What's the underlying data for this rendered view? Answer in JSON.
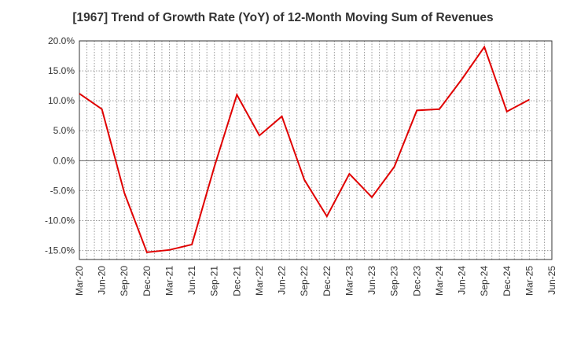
{
  "chart_data": {
    "type": "line",
    "title": "[1967]  Trend of Growth Rate (YoY) of 12-Month Moving Sum of Revenues",
    "xlabel": "",
    "ylabel": "",
    "ylim": [
      -16.5,
      20.0
    ],
    "y_ticks": [
      20.0,
      15.0,
      10.0,
      5.0,
      0.0,
      -5.0,
      -10.0,
      -15.0
    ],
    "y_tick_labels": [
      "20.0%",
      "15.0%",
      "10.0%",
      "5.0%",
      "0.0%",
      "-5.0%",
      "-10.0%",
      "-15.0%"
    ],
    "x_tick_labels": [
      "Mar-20",
      "Jun-20",
      "Sep-20",
      "Dec-20",
      "Mar-21",
      "Jun-21",
      "Sep-21",
      "Dec-21",
      "Mar-22",
      "Jun-22",
      "Sep-22",
      "Dec-22",
      "Mar-23",
      "Jun-23",
      "Sep-23",
      "Dec-23",
      "Mar-24",
      "Jun-24",
      "Sep-24",
      "Dec-24",
      "Mar-25",
      "Jun-25"
    ],
    "grid": true,
    "series": [
      {
        "color": "#e00000",
        "x": [
          "Mar-20",
          "Jun-20",
          "Sep-20",
          "Dec-20",
          "Mar-21",
          "Jun-21",
          "Sep-21",
          "Dec-21",
          "Mar-22",
          "Jun-22",
          "Sep-22",
          "Dec-22",
          "Mar-23",
          "Jun-23",
          "Sep-23",
          "Dec-23",
          "Mar-24",
          "Jun-24",
          "Sep-24",
          "Dec-24",
          "Mar-25"
        ],
        "values": [
          11.2,
          8.6,
          -5.4,
          -15.3,
          -14.9,
          -14.0,
          -1.0,
          11.0,
          4.2,
          7.4,
          -3.2,
          -9.3,
          -2.2,
          -6.1,
          -1.0,
          8.4,
          8.6,
          13.6,
          19.0,
          8.2,
          10.2
        ]
      }
    ]
  }
}
